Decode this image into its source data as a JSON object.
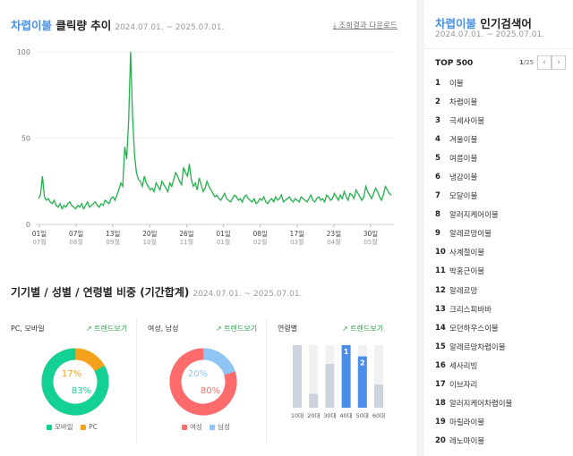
{
  "trend": {
    "keyword": "차렵이불",
    "title_suffix": " 클릭량 추이",
    "date_range": "2024.07.01. ~ 2025.07.01.",
    "download_label": "조회결과 다운로드",
    "chart_data": {
      "type": "line",
      "title": "",
      "xlabel": "",
      "ylabel": "",
      "ylim": [
        0,
        100
      ],
      "y_ticks": [
        0,
        50,
        100
      ],
      "x_ticks": [
        {
          "day": "01일",
          "month": "07월"
        },
        {
          "day": "07일",
          "month": "08월"
        },
        {
          "day": "13일",
          "month": "09월"
        },
        {
          "day": "20일",
          "month": "10월"
        },
        {
          "day": "26일",
          "month": "11월"
        },
        {
          "day": "01일",
          "month": "01월"
        },
        {
          "day": "08일",
          "month": "02월"
        },
        {
          "day": "17일",
          "month": "03월"
        },
        {
          "day": "23일",
          "month": "04월"
        },
        {
          "day": "30일",
          "month": "05월"
        }
      ],
      "line_color": "#22b24c",
      "values": [
        15,
        17,
        28,
        16,
        14,
        15,
        13,
        12,
        14,
        11,
        10,
        12,
        9,
        11,
        10,
        12,
        13,
        11,
        10,
        9,
        11,
        10,
        12,
        9,
        11,
        13,
        10,
        11,
        12,
        13,
        11,
        10,
        12,
        11,
        14,
        13,
        12,
        15,
        16,
        14,
        17,
        20,
        24,
        22,
        45,
        38,
        60,
        100,
        62,
        40,
        30,
        26,
        25,
        22,
        28,
        24,
        22,
        20,
        21,
        19,
        24,
        22,
        20,
        25,
        23,
        21,
        19,
        24,
        22,
        26,
        30,
        28,
        25,
        23,
        33,
        30,
        28,
        35,
        26,
        22,
        24,
        20,
        27,
        23,
        19,
        21,
        25,
        22,
        20,
        18,
        16,
        17,
        15,
        14,
        16,
        18,
        15,
        14,
        13,
        15,
        17,
        16,
        14,
        15,
        13,
        16,
        17,
        15,
        14,
        13,
        15,
        12,
        13,
        15,
        14,
        16,
        13,
        12,
        14,
        15,
        13,
        16,
        14,
        15,
        17,
        13,
        14,
        15,
        16,
        14,
        13,
        15,
        14,
        13,
        16,
        15,
        14,
        13,
        15,
        17,
        14,
        13,
        15,
        16,
        14,
        15,
        13,
        17,
        16,
        14,
        15,
        18,
        16,
        14,
        17,
        15,
        19,
        16,
        14,
        18,
        17,
        15,
        20,
        18,
        16,
        14,
        16,
        22,
        19,
        17,
        15,
        18,
        21,
        19,
        16,
        14,
        17,
        22,
        20,
        18,
        17
      ]
    }
  },
  "breakdown": {
    "title": "기기별 / 성별 / 연령별 비중 (기간합계)",
    "date_range": "2024.07.01. ~ 2025.07.01.",
    "trend_label": "트렌드보기",
    "device": {
      "title": "PC, 모바일",
      "mobile_pct": "83%",
      "pc_pct": "17%",
      "mobile_share": 83,
      "legend_mobile": "모바일",
      "legend_pc": "PC",
      "mobile_color": "#13d195",
      "pc_color": "#f4a21b"
    },
    "gender": {
      "title": "여성, 남성",
      "female_pct": "80%",
      "male_pct": "20%",
      "female_share": 80,
      "legend_female": "여성",
      "legend_male": "남성",
      "female_color": "#ff6b6b",
      "male_color": "#8ec5f5"
    },
    "age": {
      "title": "연령별",
      "groups": [
        {
          "label": "10대",
          "value": 1,
          "rank": ""
        },
        {
          "label": "20대",
          "value": 0.22,
          "rank": ""
        },
        {
          "label": "30대",
          "value": 0.7,
          "rank": ""
        },
        {
          "label": "40대",
          "value": 1.0,
          "rank": "1"
        },
        {
          "label": "50대",
          "value": 0.82,
          "rank": "2"
        },
        {
          "label": "60대",
          "value": 0.37,
          "rank": ""
        }
      ]
    }
  },
  "popular": {
    "keyword": "차렵이불",
    "title_suffix": " 인기검색어",
    "date_range": "2024.07.01. ~ 2025.07.01.",
    "top_label": "TOP 500",
    "page_current": "1",
    "page_total": "/25",
    "items": [
      {
        "rank": "1",
        "name": "이불"
      },
      {
        "rank": "2",
        "name": "차렵이불"
      },
      {
        "rank": "3",
        "name": "극세사이불"
      },
      {
        "rank": "4",
        "name": "겨울이불"
      },
      {
        "rank": "5",
        "name": "여름이불"
      },
      {
        "rank": "6",
        "name": "냉감이불"
      },
      {
        "rank": "7",
        "name": "모달이불"
      },
      {
        "rank": "8",
        "name": "알러지케어이불"
      },
      {
        "rank": "9",
        "name": "알레르망이불"
      },
      {
        "rank": "10",
        "name": "사계절이불"
      },
      {
        "rank": "11",
        "name": "박홍근이불"
      },
      {
        "rank": "12",
        "name": "알레르망"
      },
      {
        "rank": "13",
        "name": "크리스피바바"
      },
      {
        "rank": "14",
        "name": "모던하우스이불"
      },
      {
        "rank": "15",
        "name": "알레르망차렵이불"
      },
      {
        "rank": "16",
        "name": "세사리빙"
      },
      {
        "rank": "17",
        "name": "이브자리"
      },
      {
        "rank": "18",
        "name": "알러지케어차렵이불"
      },
      {
        "rank": "19",
        "name": "마릴라이불"
      },
      {
        "rank": "20",
        "name": "레노마이불"
      }
    ]
  }
}
